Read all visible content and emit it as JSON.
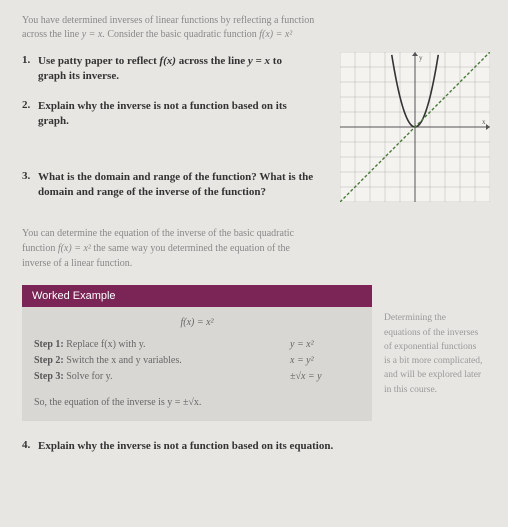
{
  "intro": {
    "line1": "You have determined inverses of linear functions by reflecting a function",
    "line2_a": "across the line ",
    "line2_eq": "y = x.",
    "line2_b": " Consider the basic quadratic function ",
    "line2_fx": "f(x) = x²"
  },
  "questions": {
    "q1": {
      "num": "1.",
      "text_a": "Use patty paper to reflect ",
      "fx": "f(x)",
      "text_b": " across the line ",
      "eq": "y = x",
      "text_c": " to graph its inverse."
    },
    "q2": {
      "num": "2.",
      "text": "Explain why the inverse is not a function based on its graph."
    },
    "q3": {
      "num": "3.",
      "text": "What is the domain and range of the function? What is the domain and range of the inverse of the function?"
    },
    "q4": {
      "num": "4.",
      "text": "Explain why the inverse is not a function based on its equation."
    }
  },
  "mid": {
    "line1": "You can determine the equation of the inverse of the basic quadratic",
    "line2_a": "function ",
    "line2_fx": "f(x) = x²",
    "line2_b": " the same way you determined the equation of the",
    "line3": "inverse of a linear function."
  },
  "worked": {
    "header": "Worked Example",
    "top_eq": "f(x) = x²",
    "step1": {
      "label": "Step 1:",
      "text": " Replace f(x) with y.",
      "eq": "y = x²"
    },
    "step2": {
      "label": "Step 2:",
      "text": " Switch the x and y variables.",
      "eq": "x = y²"
    },
    "step3": {
      "label": "Step 3:",
      "text": " Solve for y.",
      "eq": "±√x = y"
    },
    "concl": "So, the equation of the inverse is y = ±√x."
  },
  "side": {
    "text": "Determining the equations of the inverses of exponential functions is a bit more complicated, and will be explored later in this course."
  },
  "graph": {
    "type": "line",
    "xlim": [
      -10,
      10
    ],
    "ylim": [
      -10,
      10
    ],
    "tick_step": 2,
    "grid_color": "#b8b5b0",
    "axis_color": "#555",
    "background_color": "#f5f3f0",
    "curves": [
      {
        "type": "parabola",
        "color": "#333333",
        "width": 1.6
      },
      {
        "type": "identity",
        "color": "#4a7a3a",
        "width": 1.4,
        "dash": "3,2"
      }
    ]
  }
}
